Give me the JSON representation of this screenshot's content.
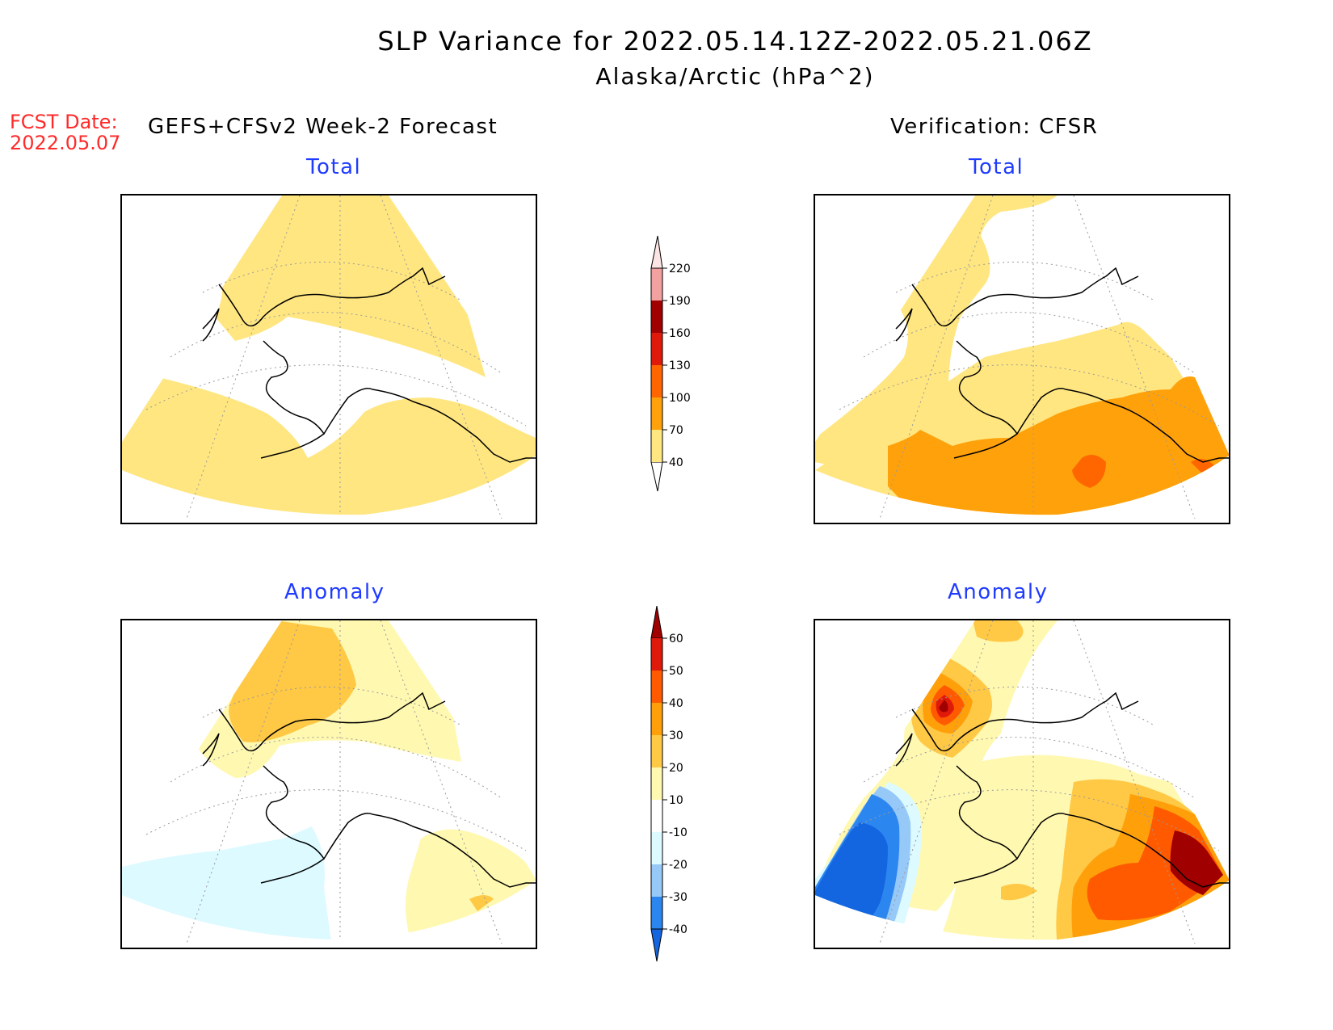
{
  "title": {
    "line1": "SLP Variance for 2022.05.14.12Z-2022.05.21.06Z",
    "line2": "Alaska/Arctic (hPa^2)"
  },
  "fcst_date": {
    "label": "FCST Date:",
    "value": "2022.05.07"
  },
  "headers": {
    "left": "GEFS+CFSv2 Week-2 Forecast",
    "right": "Verification: CFSR"
  },
  "panels": {
    "forecast_total": {
      "label": "Total"
    },
    "verification_total": {
      "label": "Total"
    },
    "forecast_anomaly": {
      "label": "Anomaly"
    },
    "verification_anomaly": {
      "label": "Anomaly"
    }
  },
  "colorbar_total": {
    "levels": [
      "40",
      "70",
      "100",
      "130",
      "160",
      "190",
      "220"
    ],
    "colors": [
      "#ffe680",
      "#ffa10a",
      "#ff6600",
      "#e01a0a",
      "#a00000",
      "#f2a0a0",
      "#fde4e4"
    ]
  },
  "colorbar_anomaly": {
    "levels": [
      "-40",
      "-30",
      "-20",
      "-10",
      "10",
      "20",
      "30",
      "40",
      "50",
      "60"
    ],
    "colors": [
      "#1466e0",
      "#2c86f0",
      "#96c8f8",
      "#dcfaff",
      "#ffffff",
      "#fff8b0",
      "#ffc845",
      "#ff9f0a",
      "#ff5a00",
      "#e01a0a",
      "#a00000"
    ]
  }
}
